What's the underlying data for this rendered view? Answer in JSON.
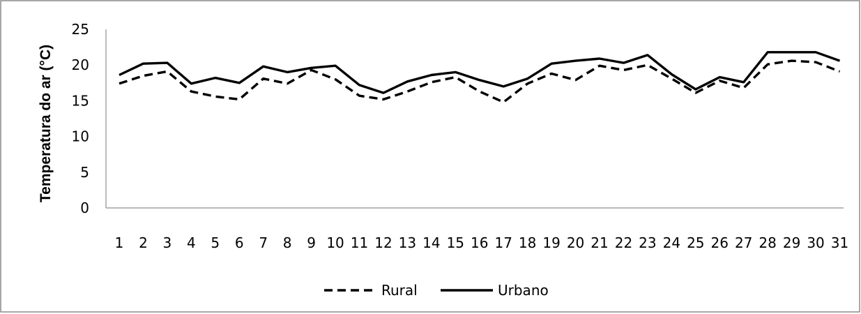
{
  "chart_data": {
    "type": "line",
    "ylabel": "Temperatura do ar (°C)",
    "xlabel": "",
    "ylim": [
      0,
      25
    ],
    "yticks": [
      0,
      5,
      10,
      15,
      20,
      25
    ],
    "categories": [
      "1",
      "2",
      "3",
      "4",
      "5",
      "6",
      "7",
      "8",
      "9",
      "10",
      "11",
      "12",
      "13",
      "14",
      "15",
      "16",
      "17",
      "18",
      "19",
      "20",
      "21",
      "22",
      "23",
      "24",
      "25",
      "26",
      "27",
      "28",
      "29",
      "30",
      "31"
    ],
    "grid": false,
    "legend": "bottom",
    "series": [
      {
        "name": "Rural",
        "style": "dashed",
        "color": "#000000",
        "values": [
          17.4,
          18.5,
          19.1,
          16.3,
          15.6,
          15.2,
          18.1,
          17.4,
          19.3,
          18.0,
          15.7,
          15.2,
          16.3,
          17.6,
          18.3,
          16.3,
          14.8,
          17.4,
          18.8,
          17.9,
          19.9,
          19.3,
          20.0,
          18.1,
          16.1,
          17.8,
          16.8,
          20.1,
          20.6,
          20.4,
          19.1
        ]
      },
      {
        "name": "Urbano",
        "style": "solid",
        "color": "#000000",
        "values": [
          18.6,
          20.2,
          20.3,
          17.4,
          18.2,
          17.5,
          19.8,
          19.0,
          19.6,
          19.9,
          17.2,
          16.1,
          17.7,
          18.6,
          19.0,
          17.9,
          17.0,
          18.1,
          20.2,
          20.6,
          20.9,
          20.3,
          21.4,
          18.7,
          16.6,
          18.3,
          17.6,
          21.8,
          21.8,
          21.8,
          20.6
        ]
      }
    ]
  }
}
